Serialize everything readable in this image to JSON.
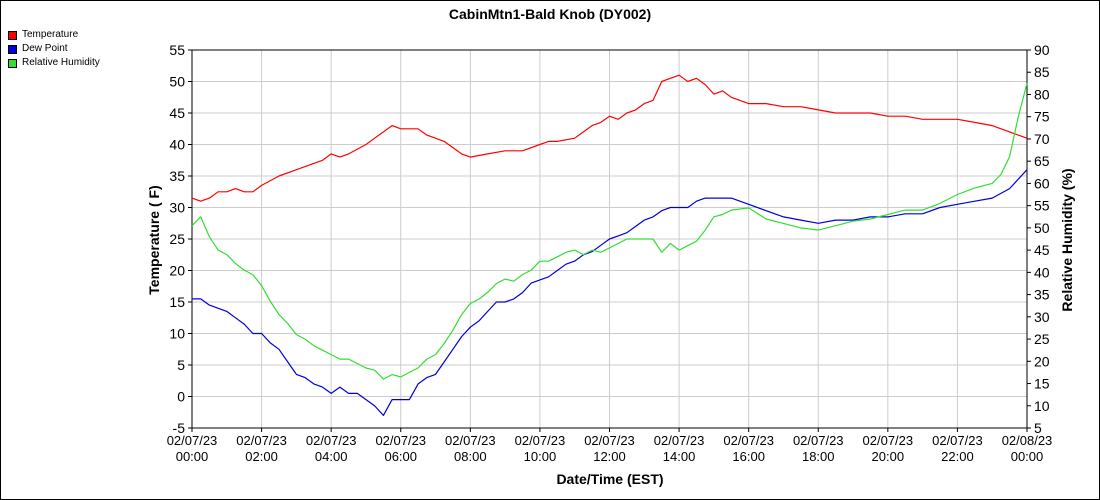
{
  "chart_data": {
    "type": "line",
    "title": "CabinMtn1-Bald Knob (DY002)",
    "xlabel": "Date/Time (EST)",
    "ylabel_left": "Temperature ( F)",
    "ylabel_right": "Relative Humidity (%)",
    "ylim_left": [
      -5,
      55
    ],
    "ylim_right": [
      5,
      90
    ],
    "yticks_left": [
      "-5",
      "0",
      "5",
      "10",
      "15",
      "20",
      "25",
      "30",
      "35",
      "40",
      "45",
      "50",
      "55"
    ],
    "yticks_right": [
      "5",
      "10",
      "15",
      "20",
      "25",
      "30",
      "35",
      "40",
      "45",
      "50",
      "55",
      "60",
      "65",
      "70",
      "75",
      "80",
      "85",
      "90"
    ],
    "xlim_hours": [
      0,
      24
    ],
    "xticks": [
      {
        "date": "02/07/23",
        "time": "00:00"
      },
      {
        "date": "02/07/23",
        "time": "02:00"
      },
      {
        "date": "02/07/23",
        "time": "04:00"
      },
      {
        "date": "02/07/23",
        "time": "06:00"
      },
      {
        "date": "02/07/23",
        "time": "08:00"
      },
      {
        "date": "02/07/23",
        "time": "10:00"
      },
      {
        "date": "02/07/23",
        "time": "12:00"
      },
      {
        "date": "02/07/23",
        "time": "14:00"
      },
      {
        "date": "02/07/23",
        "time": "16:00"
      },
      {
        "date": "02/07/23",
        "time": "18:00"
      },
      {
        "date": "02/07/23",
        "time": "20:00"
      },
      {
        "date": "02/07/23",
        "time": "22:00"
      },
      {
        "date": "02/08/23",
        "time": "00:00"
      }
    ],
    "grid": true,
    "legend_position": "top-left",
    "series": [
      {
        "name": "Temperature",
        "axis": "left",
        "color": "#ff0000",
        "points": [
          [
            0.0,
            31.5
          ],
          [
            0.25,
            31.0
          ],
          [
            0.5,
            31.5
          ],
          [
            0.75,
            32.5
          ],
          [
            1.0,
            32.5
          ],
          [
            1.25,
            33.0
          ],
          [
            1.5,
            32.5
          ],
          [
            1.75,
            32.5
          ],
          [
            2.0,
            33.5
          ],
          [
            2.5,
            35.0
          ],
          [
            3.0,
            36.0
          ],
          [
            3.25,
            36.5
          ],
          [
            3.5,
            37.0
          ],
          [
            3.75,
            37.5
          ],
          [
            4.0,
            38.5
          ],
          [
            4.25,
            38.0
          ],
          [
            4.5,
            38.5
          ],
          [
            5.0,
            40.0
          ],
          [
            5.25,
            41.0
          ],
          [
            5.5,
            42.0
          ],
          [
            5.75,
            43.0
          ],
          [
            6.0,
            42.5
          ],
          [
            6.5,
            42.5
          ],
          [
            6.75,
            41.5
          ],
          [
            7.0,
            41.0
          ],
          [
            7.25,
            40.5
          ],
          [
            7.5,
            39.5
          ],
          [
            7.75,
            38.5
          ],
          [
            8.0,
            38.0
          ],
          [
            8.5,
            38.5
          ],
          [
            9.0,
            39.0
          ],
          [
            9.5,
            39.0
          ],
          [
            10.0,
            40.0
          ],
          [
            10.25,
            40.5
          ],
          [
            10.5,
            40.5
          ],
          [
            11.0,
            41.0
          ],
          [
            11.25,
            42.0
          ],
          [
            11.5,
            43.0
          ],
          [
            11.75,
            43.5
          ],
          [
            12.0,
            44.5
          ],
          [
            12.25,
            44.0
          ],
          [
            12.5,
            45.0
          ],
          [
            12.75,
            45.5
          ],
          [
            13.0,
            46.5
          ],
          [
            13.25,
            47.0
          ],
          [
            13.5,
            50.0
          ],
          [
            13.75,
            50.5
          ],
          [
            14.0,
            51.0
          ],
          [
            14.25,
            50.0
          ],
          [
            14.5,
            50.5
          ],
          [
            14.75,
            49.5
          ],
          [
            15.0,
            48.0
          ],
          [
            15.25,
            48.5
          ],
          [
            15.5,
            47.5
          ],
          [
            16.0,
            46.5
          ],
          [
            16.5,
            46.5
          ],
          [
            17.0,
            46.0
          ],
          [
            17.5,
            46.0
          ],
          [
            18.0,
            45.5
          ],
          [
            18.5,
            45.0
          ],
          [
            19.0,
            45.0
          ],
          [
            19.5,
            45.0
          ],
          [
            20.0,
            44.5
          ],
          [
            20.5,
            44.5
          ],
          [
            21.0,
            44.0
          ],
          [
            21.5,
            44.0
          ],
          [
            22.0,
            44.0
          ],
          [
            22.5,
            43.5
          ],
          [
            23.0,
            43.0
          ],
          [
            23.5,
            42.0
          ],
          [
            24.0,
            41.0
          ]
        ]
      },
      {
        "name": "Dew Point",
        "axis": "left",
        "color": "#0000dd",
        "points": [
          [
            0.0,
            15.5
          ],
          [
            0.25,
            15.5
          ],
          [
            0.5,
            14.5
          ],
          [
            1.0,
            13.5
          ],
          [
            1.25,
            12.5
          ],
          [
            1.5,
            11.5
          ],
          [
            1.75,
            10.0
          ],
          [
            2.0,
            10.0
          ],
          [
            2.25,
            8.5
          ],
          [
            2.5,
            7.5
          ],
          [
            2.75,
            5.5
          ],
          [
            3.0,
            3.5
          ],
          [
            3.25,
            3.0
          ],
          [
            3.5,
            2.0
          ],
          [
            3.75,
            1.5
          ],
          [
            4.0,
            0.5
          ],
          [
            4.25,
            1.5
          ],
          [
            4.5,
            0.5
          ],
          [
            4.75,
            0.5
          ],
          [
            5.0,
            -0.5
          ],
          [
            5.25,
            -1.5
          ],
          [
            5.5,
            -3.0
          ],
          [
            5.75,
            -0.5
          ],
          [
            6.0,
            -0.5
          ],
          [
            6.25,
            -0.5
          ],
          [
            6.5,
            2.0
          ],
          [
            6.75,
            3.0
          ],
          [
            7.0,
            3.5
          ],
          [
            7.25,
            5.5
          ],
          [
            7.5,
            7.5
          ],
          [
            7.75,
            9.5
          ],
          [
            8.0,
            11.0
          ],
          [
            8.25,
            12.0
          ],
          [
            8.5,
            13.5
          ],
          [
            8.75,
            15.0
          ],
          [
            9.0,
            15.0
          ],
          [
            9.25,
            15.5
          ],
          [
            9.5,
            16.5
          ],
          [
            9.75,
            18.0
          ],
          [
            10.0,
            18.5
          ],
          [
            10.25,
            19.0
          ],
          [
            10.5,
            20.0
          ],
          [
            10.75,
            21.0
          ],
          [
            11.0,
            21.5
          ],
          [
            11.25,
            22.5
          ],
          [
            11.5,
            23.0
          ],
          [
            11.75,
            24.0
          ],
          [
            12.0,
            25.0
          ],
          [
            12.25,
            25.5
          ],
          [
            12.5,
            26.0
          ],
          [
            12.75,
            27.0
          ],
          [
            13.0,
            28.0
          ],
          [
            13.25,
            28.5
          ],
          [
            13.5,
            29.5
          ],
          [
            13.75,
            30.0
          ],
          [
            14.0,
            30.0
          ],
          [
            14.25,
            30.0
          ],
          [
            14.5,
            31.0
          ],
          [
            14.75,
            31.5
          ],
          [
            15.0,
            31.5
          ],
          [
            15.5,
            31.5
          ],
          [
            16.0,
            30.5
          ],
          [
            16.5,
            29.5
          ],
          [
            17.0,
            28.5
          ],
          [
            17.5,
            28.0
          ],
          [
            18.0,
            27.5
          ],
          [
            18.5,
            28.0
          ],
          [
            19.0,
            28.0
          ],
          [
            19.5,
            28.5
          ],
          [
            20.0,
            28.5
          ],
          [
            20.5,
            29.0
          ],
          [
            21.0,
            29.0
          ],
          [
            21.5,
            30.0
          ],
          [
            22.0,
            30.5
          ],
          [
            22.5,
            31.0
          ],
          [
            23.0,
            31.5
          ],
          [
            23.5,
            33.0
          ],
          [
            24.0,
            36.0
          ]
        ]
      },
      {
        "name": "Relative Humidity",
        "axis": "right",
        "color": "#33dd33",
        "points": [
          [
            0.0,
            50.5
          ],
          [
            0.25,
            52.5
          ],
          [
            0.5,
            48.0
          ],
          [
            0.75,
            45.0
          ],
          [
            1.0,
            44.0
          ],
          [
            1.25,
            42.0
          ],
          [
            1.5,
            40.5
          ],
          [
            1.75,
            39.5
          ],
          [
            2.0,
            37.0
          ],
          [
            2.25,
            33.5
          ],
          [
            2.5,
            30.5
          ],
          [
            2.75,
            28.5
          ],
          [
            3.0,
            26.0
          ],
          [
            3.25,
            25.0
          ],
          [
            3.5,
            23.5
          ],
          [
            3.75,
            22.5
          ],
          [
            4.0,
            21.5
          ],
          [
            4.25,
            20.5
          ],
          [
            4.5,
            20.5
          ],
          [
            4.75,
            19.5
          ],
          [
            5.0,
            18.5
          ],
          [
            5.25,
            18.0
          ],
          [
            5.5,
            16.0
          ],
          [
            5.75,
            17.0
          ],
          [
            6.0,
            16.5
          ],
          [
            6.25,
            17.5
          ],
          [
            6.5,
            18.5
          ],
          [
            6.75,
            20.5
          ],
          [
            7.0,
            21.5
          ],
          [
            7.25,
            24.0
          ],
          [
            7.5,
            27.0
          ],
          [
            7.75,
            30.5
          ],
          [
            8.0,
            33.0
          ],
          [
            8.25,
            34.0
          ],
          [
            8.5,
            35.5
          ],
          [
            8.75,
            37.5
          ],
          [
            9.0,
            38.5
          ],
          [
            9.25,
            38.0
          ],
          [
            9.5,
            39.5
          ],
          [
            9.75,
            40.5
          ],
          [
            10.0,
            42.5
          ],
          [
            10.25,
            42.5
          ],
          [
            10.5,
            43.5
          ],
          [
            10.75,
            44.5
          ],
          [
            11.0,
            45.0
          ],
          [
            11.25,
            44.0
          ],
          [
            11.5,
            45.0
          ],
          [
            11.75,
            44.5
          ],
          [
            12.0,
            45.5
          ],
          [
            12.5,
            47.5
          ],
          [
            13.0,
            47.5
          ],
          [
            13.25,
            47.5
          ],
          [
            13.5,
            44.5
          ],
          [
            13.75,
            46.5
          ],
          [
            14.0,
            45.0
          ],
          [
            14.25,
            46.0
          ],
          [
            14.5,
            47.0
          ],
          [
            14.75,
            49.5
          ],
          [
            15.0,
            52.5
          ],
          [
            15.25,
            53.0
          ],
          [
            15.5,
            54.0
          ],
          [
            16.0,
            54.5
          ],
          [
            16.5,
            52.0
          ],
          [
            17.0,
            51.0
          ],
          [
            17.5,
            50.0
          ],
          [
            18.0,
            49.5
          ],
          [
            18.5,
            50.5
          ],
          [
            19.0,
            51.5
          ],
          [
            19.5,
            52.0
          ],
          [
            20.0,
            53.0
          ],
          [
            20.5,
            54.0
          ],
          [
            21.0,
            54.0
          ],
          [
            21.5,
            55.5
          ],
          [
            22.0,
            57.5
          ],
          [
            22.5,
            59.0
          ],
          [
            23.0,
            60.0
          ],
          [
            23.25,
            62.0
          ],
          [
            23.5,
            66.0
          ],
          [
            23.75,
            75.0
          ],
          [
            24.0,
            82.5
          ]
        ]
      }
    ]
  }
}
